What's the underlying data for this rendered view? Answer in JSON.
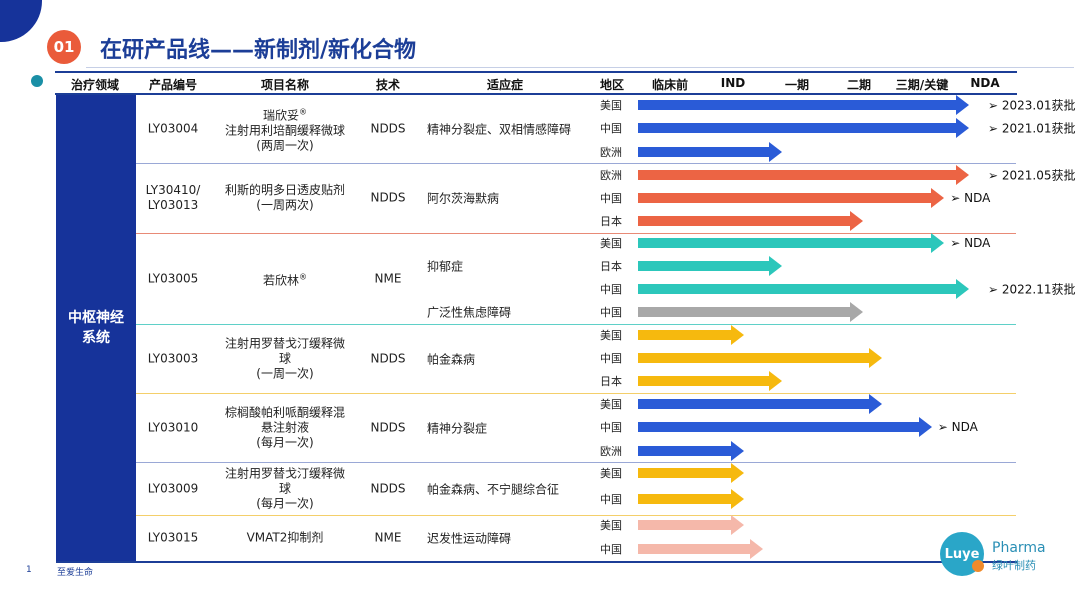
{
  "slide": {
    "number_badge": "01",
    "title": "在研产品线——新制剂/新化合物",
    "page_number": "1",
    "footer": "至爱生命",
    "logo_text": "Luye",
    "brand_en": "Pharma",
    "brand_cn": "绿叶制药"
  },
  "headers": {
    "therapy": "治疗领域",
    "code": "产品编号",
    "name": "项目名称",
    "tech": "技术",
    "indication": "适应症",
    "region": "地区",
    "preclinical": "临床前",
    "ind": "IND",
    "phase1": "一期",
    "phase2": "二期",
    "phase3": "三期/关键",
    "nda": "NDA"
  },
  "therapy_area": [
    "中枢神经",
    "系统"
  ],
  "colors": {
    "blue": "#2a5bd7",
    "orange": "#ec6444",
    "teal": "#2cc7bb",
    "gray": "#a8a8a8",
    "yellow": "#f6b90e",
    "pink": "#f5b8aa"
  },
  "stage_scale": {
    "preclinical": 0,
    "ind": 1,
    "phase1": 2,
    "phase2": 3,
    "phase3": 4,
    "nda": 5,
    "approved": 5.3
  },
  "products": [
    {
      "code": "LY03004",
      "name": "瑞欣妥®\n注射用利培酮缓释微球\n(两周一次)",
      "tech": "NDDS",
      "indications": [
        "精神分裂症、双相情感障碍"
      ],
      "regions": [
        {
          "region": "美国",
          "stage": 5.3,
          "color": "blue",
          "note": "➢ 2023.01获批"
        },
        {
          "region": "中国",
          "stage": 5.3,
          "color": "blue",
          "note": "➢ 2021.01获批"
        },
        {
          "region": "欧洲",
          "stage": 2.3,
          "color": "blue",
          "note": ""
        }
      ]
    },
    {
      "code": "LY30410/\nLY03013",
      "name": "利斯的明多日透皮贴剂\n(一周两次)",
      "tech": "NDDS",
      "indications": [
        "阿尔茨海默病"
      ],
      "regions": [
        {
          "region": "欧洲",
          "stage": 5.3,
          "color": "orange",
          "note": "➢ 2021.05获批"
        },
        {
          "region": "中国",
          "stage": 4.9,
          "color": "orange",
          "note": "➢ NDA"
        },
        {
          "region": "日本",
          "stage": 3.6,
          "color": "orange",
          "note": ""
        }
      ]
    },
    {
      "code": "LY03005",
      "name": "若欣林®",
      "tech": "NME",
      "indications": [
        "抑郁症",
        "广泛性焦虑障碍"
      ],
      "regions": [
        {
          "region": "美国",
          "stage": 4.9,
          "color": "teal",
          "note": "➢ NDA"
        },
        {
          "region": "日本",
          "stage": 2.3,
          "color": "teal",
          "note": ""
        },
        {
          "region": "中国",
          "stage": 5.3,
          "color": "teal",
          "note": "➢ 2022.11获批"
        },
        {
          "region": "中国",
          "stage": 3.6,
          "color": "gray",
          "note": ""
        }
      ]
    },
    {
      "code": "LY03003",
      "name": "注射用罗替戈汀缓释微\n球\n(一周一次)",
      "tech": "NDDS",
      "indications": [
        "帕金森病"
      ],
      "regions": [
        {
          "region": "美国",
          "stage": 1.7,
          "color": "yellow",
          "note": ""
        },
        {
          "region": "中国",
          "stage": 3.9,
          "color": "yellow",
          "note": ""
        },
        {
          "region": "日本",
          "stage": 2.3,
          "color": "yellow",
          "note": ""
        }
      ]
    },
    {
      "code": "LY03010",
      "name": "棕榈酸帕利哌酮缓释混\n悬注射液\n(每月一次)",
      "tech": "NDDS",
      "indications": [
        "精神分裂症"
      ],
      "regions": [
        {
          "region": "美国",
          "stage": 3.9,
          "color": "blue",
          "note": ""
        },
        {
          "region": "中国",
          "stage": 4.7,
          "color": "blue",
          "note": "➢ NDA"
        },
        {
          "region": "欧洲",
          "stage": 1.7,
          "color": "blue",
          "note": ""
        }
      ]
    },
    {
      "code": "LY03009",
      "name": "注射用罗替戈汀缓释微\n球\n(每月一次)",
      "tech": "NDDS",
      "indications": [
        "帕金森病、不宁腿综合征"
      ],
      "regions": [
        {
          "region": "美国",
          "stage": 1.7,
          "color": "yellow",
          "note": ""
        },
        {
          "region": "中国",
          "stage": 1.7,
          "color": "yellow",
          "note": ""
        }
      ]
    },
    {
      "code": "LY03015",
      "name": "VMAT2抑制剂",
      "tech": "NME",
      "indications": [
        "迟发性运动障碍"
      ],
      "regions": [
        {
          "region": "美国",
          "stage": 1.7,
          "color": "pink",
          "note": ""
        },
        {
          "region": "中国",
          "stage": 2.0,
          "color": "pink",
          "note": ""
        }
      ]
    }
  ]
}
